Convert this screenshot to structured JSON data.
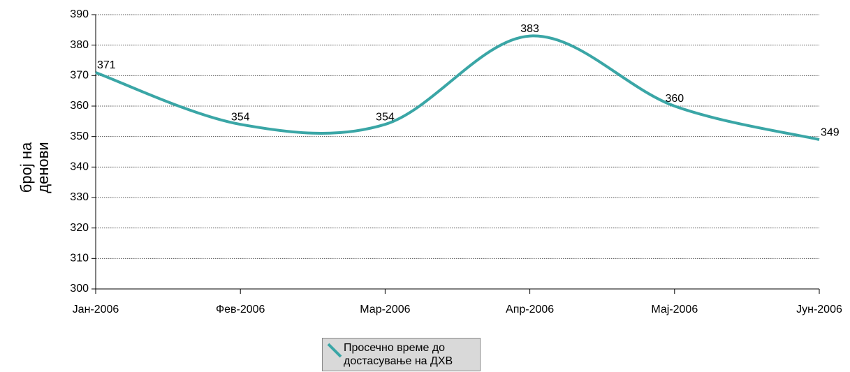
{
  "chart_data": {
    "type": "line",
    "ylabel": "број на денови",
    "categories": [
      "Јан-2006",
      "Фев-2006",
      "Мар-2006",
      "Апр-2006",
      "Мај-2006",
      "Јун-2006"
    ],
    "series": [
      {
        "name": "Просечно време до достасување на ДХВ",
        "color": "#3aa6a6",
        "values": [
          371,
          354,
          354,
          383,
          360,
          349
        ]
      }
    ],
    "ylim": [
      300,
      390
    ],
    "yticks": [
      300,
      310,
      320,
      330,
      340,
      350,
      360,
      370,
      380,
      390
    ],
    "grid": true,
    "legend": "bottom"
  }
}
